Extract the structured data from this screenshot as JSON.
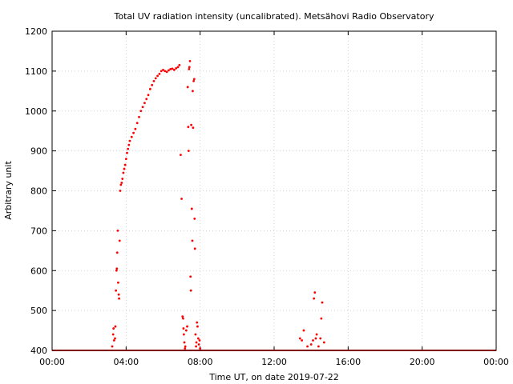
{
  "chart_data": {
    "type": "scatter",
    "title": "Total UV radiation intensity (uncalibrated). Metsähovi Radio Observatory",
    "xlabel": "Time UT, on date 2019-07-22",
    "ylabel": "Arbitrary unit",
    "xlim": [
      0,
      24
    ],
    "ylim": [
      400,
      1200
    ],
    "grid": true,
    "x_ticks": [
      {
        "value": 0,
        "label": "00:00"
      },
      {
        "value": 4,
        "label": "04:00"
      },
      {
        "value": 8,
        "label": "08:00"
      },
      {
        "value": 12,
        "label": "12:00"
      },
      {
        "value": 16,
        "label": "16:00"
      },
      {
        "value": 20,
        "label": "20:00"
      },
      {
        "value": 24,
        "label": "00:00"
      }
    ],
    "y_ticks": [
      {
        "value": 400,
        "label": "400"
      },
      {
        "value": 500,
        "label": "500"
      },
      {
        "value": 600,
        "label": "600"
      },
      {
        "value": 700,
        "label": "700"
      },
      {
        "value": 800,
        "label": "800"
      },
      {
        "value": 900,
        "label": "900"
      },
      {
        "value": 1000,
        "label": "1000"
      },
      {
        "value": 1100,
        "label": "1100"
      },
      {
        "value": 1200,
        "label": "1200"
      }
    ],
    "series": [
      {
        "color": "#ff0000",
        "baseline": {
          "value": 400,
          "x_start": 0,
          "x_end": 24
        },
        "points": [
          [
            3.25,
            410
          ],
          [
            3.3,
            440
          ],
          [
            3.32,
            455
          ],
          [
            3.35,
            425
          ],
          [
            3.4,
            430
          ],
          [
            3.42,
            460
          ],
          [
            3.45,
            550
          ],
          [
            3.48,
            600
          ],
          [
            3.5,
            605
          ],
          [
            3.52,
            645
          ],
          [
            3.55,
            700
          ],
          [
            3.57,
            570
          ],
          [
            3.6,
            540
          ],
          [
            3.62,
            530
          ],
          [
            3.65,
            675
          ],
          [
            3.68,
            800
          ],
          [
            3.72,
            815
          ],
          [
            3.76,
            820
          ],
          [
            3.8,
            830
          ],
          [
            3.85,
            845
          ],
          [
            3.9,
            855
          ],
          [
            3.95,
            865
          ],
          [
            4.0,
            880
          ],
          [
            4.05,
            895
          ],
          [
            4.1,
            905
          ],
          [
            4.15,
            915
          ],
          [
            4.2,
            925
          ],
          [
            4.3,
            935
          ],
          [
            4.4,
            945
          ],
          [
            4.5,
            955
          ],
          [
            4.6,
            970
          ],
          [
            4.7,
            985
          ],
          [
            4.8,
            1000
          ],
          [
            4.9,
            1010
          ],
          [
            5.0,
            1020
          ],
          [
            5.1,
            1030
          ],
          [
            5.2,
            1040
          ],
          [
            5.3,
            1055
          ],
          [
            5.4,
            1065
          ],
          [
            5.5,
            1075
          ],
          [
            5.6,
            1082
          ],
          [
            5.7,
            1088
          ],
          [
            5.8,
            1093
          ],
          [
            5.9,
            1100
          ],
          [
            6.0,
            1103
          ],
          [
            6.1,
            1100
          ],
          [
            6.2,
            1098
          ],
          [
            6.3,
            1102
          ],
          [
            6.4,
            1105
          ],
          [
            6.5,
            1106
          ],
          [
            6.6,
            1103
          ],
          [
            6.7,
            1107
          ],
          [
            6.8,
            1110
          ],
          [
            6.88,
            1115
          ],
          [
            6.95,
            890
          ],
          [
            7.0,
            780
          ],
          [
            7.05,
            485
          ],
          [
            7.08,
            480
          ],
          [
            7.1,
            455
          ],
          [
            7.12,
            440
          ],
          [
            7.15,
            420
          ],
          [
            7.18,
            405
          ],
          [
            7.2,
            410
          ],
          [
            7.25,
            450
          ],
          [
            7.3,
            460
          ],
          [
            7.33,
            1060
          ],
          [
            7.36,
            960
          ],
          [
            7.38,
            900
          ],
          [
            7.4,
            1105
          ],
          [
            7.42,
            1110
          ],
          [
            7.45,
            1125
          ],
          [
            7.48,
            585
          ],
          [
            7.5,
            550
          ],
          [
            7.52,
            965
          ],
          [
            7.55,
            755
          ],
          [
            7.58,
            675
          ],
          [
            7.6,
            1050
          ],
          [
            7.62,
            958
          ],
          [
            7.65,
            1075
          ],
          [
            7.68,
            1080
          ],
          [
            7.7,
            730
          ],
          [
            7.72,
            655
          ],
          [
            7.75,
            440
          ],
          [
            7.78,
            410
          ],
          [
            7.8,
            420
          ],
          [
            7.83,
            470
          ],
          [
            7.86,
            460
          ],
          [
            7.9,
            430
          ],
          [
            7.93,
            415
          ],
          [
            7.97,
            425
          ],
          [
            8.0,
            405
          ],
          [
            13.4,
            430
          ],
          [
            13.5,
            425
          ],
          [
            13.6,
            450
          ],
          [
            13.8,
            410
          ],
          [
            14.0,
            415
          ],
          [
            14.1,
            425
          ],
          [
            14.15,
            530
          ],
          [
            14.2,
            545
          ],
          [
            14.25,
            430
          ],
          [
            14.3,
            440
          ],
          [
            14.4,
            410
          ],
          [
            14.5,
            430
          ],
          [
            14.55,
            480
          ],
          [
            14.6,
            520
          ],
          [
            14.7,
            420
          ]
        ]
      }
    ]
  }
}
